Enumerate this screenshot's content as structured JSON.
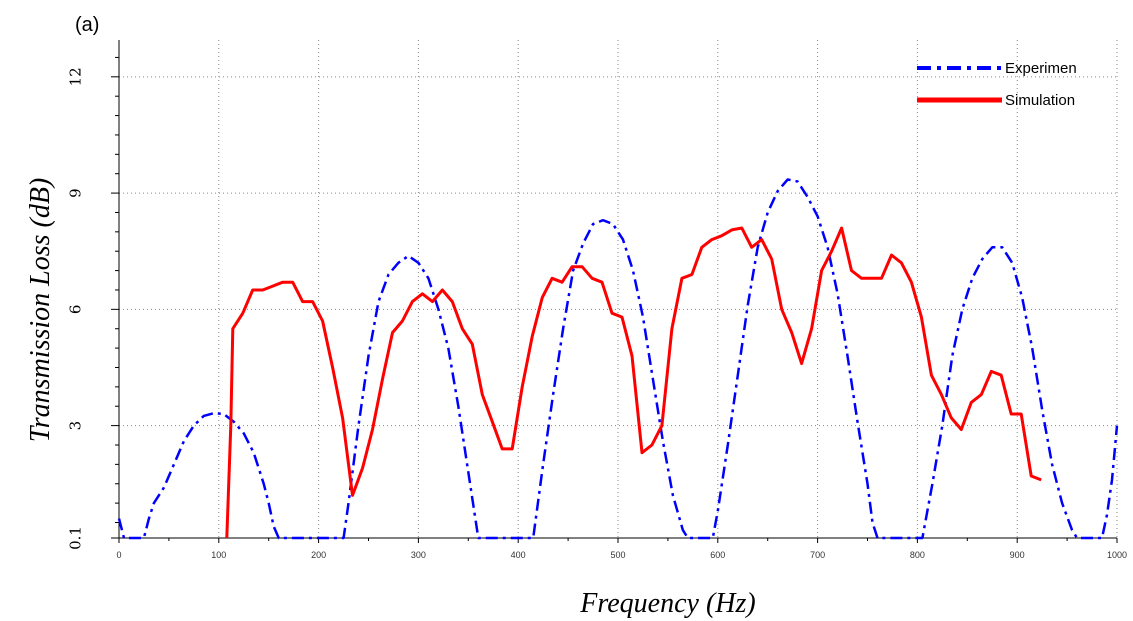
{
  "panel_label": "(a)",
  "chart_data": {
    "type": "line",
    "title": "",
    "xlabel": "Frequency (Hz)",
    "ylabel": "Transmission Loss (dB)",
    "xlim": [
      0,
      1000
    ],
    "ylim": [
      0.1,
      12.95
    ],
    "x_ticks": [
      0,
      100,
      200,
      300,
      400,
      500,
      600,
      700,
      800,
      900,
      1000
    ],
    "x_tick_labels": [
      "0",
      "100",
      "200",
      "300",
      "400",
      "500",
      "600",
      "700",
      "800",
      "900",
      "1000"
    ],
    "y_ticks": [
      0.1,
      3,
      6,
      9,
      12
    ],
    "y_tick_labels": [
      "0.1",
      "3",
      "6",
      "9",
      "12"
    ],
    "grid": true,
    "legend_position": "top-right",
    "series": [
      {
        "name": "Experimen",
        "color": "#0000ff",
        "style": "dash-dot",
        "points": [
          [
            0,
            0.6
          ],
          [
            5,
            0.1
          ],
          [
            25,
            0.1
          ],
          [
            30,
            0.6
          ],
          [
            35,
            1.0
          ],
          [
            45,
            1.4
          ],
          [
            55,
            2.0
          ],
          [
            65,
            2.6
          ],
          [
            75,
            3.0
          ],
          [
            85,
            3.25
          ],
          [
            95,
            3.32
          ],
          [
            105,
            3.3
          ],
          [
            115,
            3.1
          ],
          [
            125,
            2.8
          ],
          [
            135,
            2.3
          ],
          [
            145,
            1.5
          ],
          [
            150,
            1.0
          ],
          [
            155,
            0.4
          ],
          [
            160,
            0.1
          ],
          [
            225,
            0.1
          ],
          [
            230,
            1.0
          ],
          [
            240,
            3.0
          ],
          [
            250,
            4.8
          ],
          [
            260,
            6.2
          ],
          [
            270,
            6.9
          ],
          [
            280,
            7.2
          ],
          [
            290,
            7.38
          ],
          [
            300,
            7.2
          ],
          [
            310,
            6.8
          ],
          [
            320,
            6.0
          ],
          [
            330,
            5.0
          ],
          [
            340,
            3.5
          ],
          [
            350,
            1.8
          ],
          [
            360,
            0.1
          ],
          [
            415,
            0.1
          ],
          [
            425,
            2.0
          ],
          [
            435,
            3.8
          ],
          [
            445,
            5.5
          ],
          [
            455,
            7.0
          ],
          [
            465,
            7.7
          ],
          [
            475,
            8.2
          ],
          [
            485,
            8.3
          ],
          [
            495,
            8.2
          ],
          [
            505,
            7.8
          ],
          [
            515,
            7.0
          ],
          [
            525,
            5.8
          ],
          [
            535,
            4.2
          ],
          [
            545,
            2.6
          ],
          [
            555,
            1.2
          ],
          [
            565,
            0.3
          ],
          [
            570,
            0.1
          ],
          [
            595,
            0.1
          ],
          [
            600,
            0.8
          ],
          [
            610,
            2.5
          ],
          [
            620,
            4.3
          ],
          [
            630,
            6.1
          ],
          [
            640,
            7.6
          ],
          [
            650,
            8.5
          ],
          [
            660,
            9.05
          ],
          [
            670,
            9.35
          ],
          [
            680,
            9.3
          ],
          [
            690,
            8.9
          ],
          [
            700,
            8.4
          ],
          [
            710,
            7.6
          ],
          [
            720,
            6.4
          ],
          [
            730,
            4.8
          ],
          [
            740,
            3.1
          ],
          [
            750,
            1.5
          ],
          [
            755,
            0.5
          ],
          [
            760,
            0.1
          ],
          [
            805,
            0.1
          ],
          [
            815,
            1.5
          ],
          [
            825,
            3.0
          ],
          [
            835,
            4.8
          ],
          [
            845,
            6.0
          ],
          [
            855,
            6.8
          ],
          [
            865,
            7.3
          ],
          [
            875,
            7.6
          ],
          [
            885,
            7.6
          ],
          [
            895,
            7.2
          ],
          [
            905,
            6.3
          ],
          [
            915,
            5.0
          ],
          [
            925,
            3.4
          ],
          [
            935,
            2.0
          ],
          [
            945,
            1.0
          ],
          [
            955,
            0.3
          ],
          [
            960,
            0.1
          ],
          [
            985,
            0.1
          ],
          [
            990,
            0.7
          ],
          [
            995,
            1.6
          ],
          [
            1000,
            3.0
          ]
        ]
      },
      {
        "name": "Simulation",
        "color": "#ff0000",
        "style": "solid",
        "points": [
          [
            108,
            0.1
          ],
          [
            112,
            3.0
          ],
          [
            114,
            5.5
          ],
          [
            124,
            5.9
          ],
          [
            134,
            6.5
          ],
          [
            144,
            6.5
          ],
          [
            154,
            6.6
          ],
          [
            164,
            6.7
          ],
          [
            174,
            6.7
          ],
          [
            184,
            6.2
          ],
          [
            194,
            6.2
          ],
          [
            204,
            5.7
          ],
          [
            214,
            4.5
          ],
          [
            224,
            3.2
          ],
          [
            234,
            1.2
          ],
          [
            244,
            1.9
          ],
          [
            254,
            2.9
          ],
          [
            264,
            4.2
          ],
          [
            274,
            5.4
          ],
          [
            284,
            5.7
          ],
          [
            294,
            6.2
          ],
          [
            304,
            6.4
          ],
          [
            314,
            6.2
          ],
          [
            324,
            6.5
          ],
          [
            334,
            6.2
          ],
          [
            344,
            5.5
          ],
          [
            354,
            5.1
          ],
          [
            364,
            3.8
          ],
          [
            374,
            3.1
          ],
          [
            384,
            2.4
          ],
          [
            394,
            2.4
          ],
          [
            404,
            4.0
          ],
          [
            414,
            5.3
          ],
          [
            424,
            6.3
          ],
          [
            434,
            6.8
          ],
          [
            444,
            6.7
          ],
          [
            454,
            7.1
          ],
          [
            464,
            7.1
          ],
          [
            474,
            6.8
          ],
          [
            484,
            6.7
          ],
          [
            494,
            5.9
          ],
          [
            504,
            5.8
          ],
          [
            514,
            4.8
          ],
          [
            524,
            2.3
          ],
          [
            534,
            2.5
          ],
          [
            544,
            3.0
          ],
          [
            554,
            5.5
          ],
          [
            564,
            6.8
          ],
          [
            574,
            6.9
          ],
          [
            584,
            7.6
          ],
          [
            594,
            7.8
          ],
          [
            604,
            7.9
          ],
          [
            614,
            8.05
          ],
          [
            624,
            8.1
          ],
          [
            634,
            7.6
          ],
          [
            644,
            7.8
          ],
          [
            654,
            7.3
          ],
          [
            664,
            6.0
          ],
          [
            674,
            5.4
          ],
          [
            684,
            4.6
          ],
          [
            694,
            5.5
          ],
          [
            704,
            7.0
          ],
          [
            714,
            7.5
          ],
          [
            724,
            8.1
          ],
          [
            734,
            7.0
          ],
          [
            744,
            6.8
          ],
          [
            754,
            6.8
          ],
          [
            764,
            6.8
          ],
          [
            774,
            7.4
          ],
          [
            784,
            7.2
          ],
          [
            794,
            6.7
          ],
          [
            804,
            5.8
          ],
          [
            814,
            4.3
          ],
          [
            824,
            3.8
          ],
          [
            834,
            3.2
          ],
          [
            844,
            2.9
          ],
          [
            854,
            3.6
          ],
          [
            864,
            3.8
          ],
          [
            874,
            4.4
          ],
          [
            884,
            4.3
          ],
          [
            894,
            3.3
          ],
          [
            904,
            3.3
          ],
          [
            914,
            1.7
          ],
          [
            924,
            1.6
          ]
        ]
      }
    ]
  }
}
